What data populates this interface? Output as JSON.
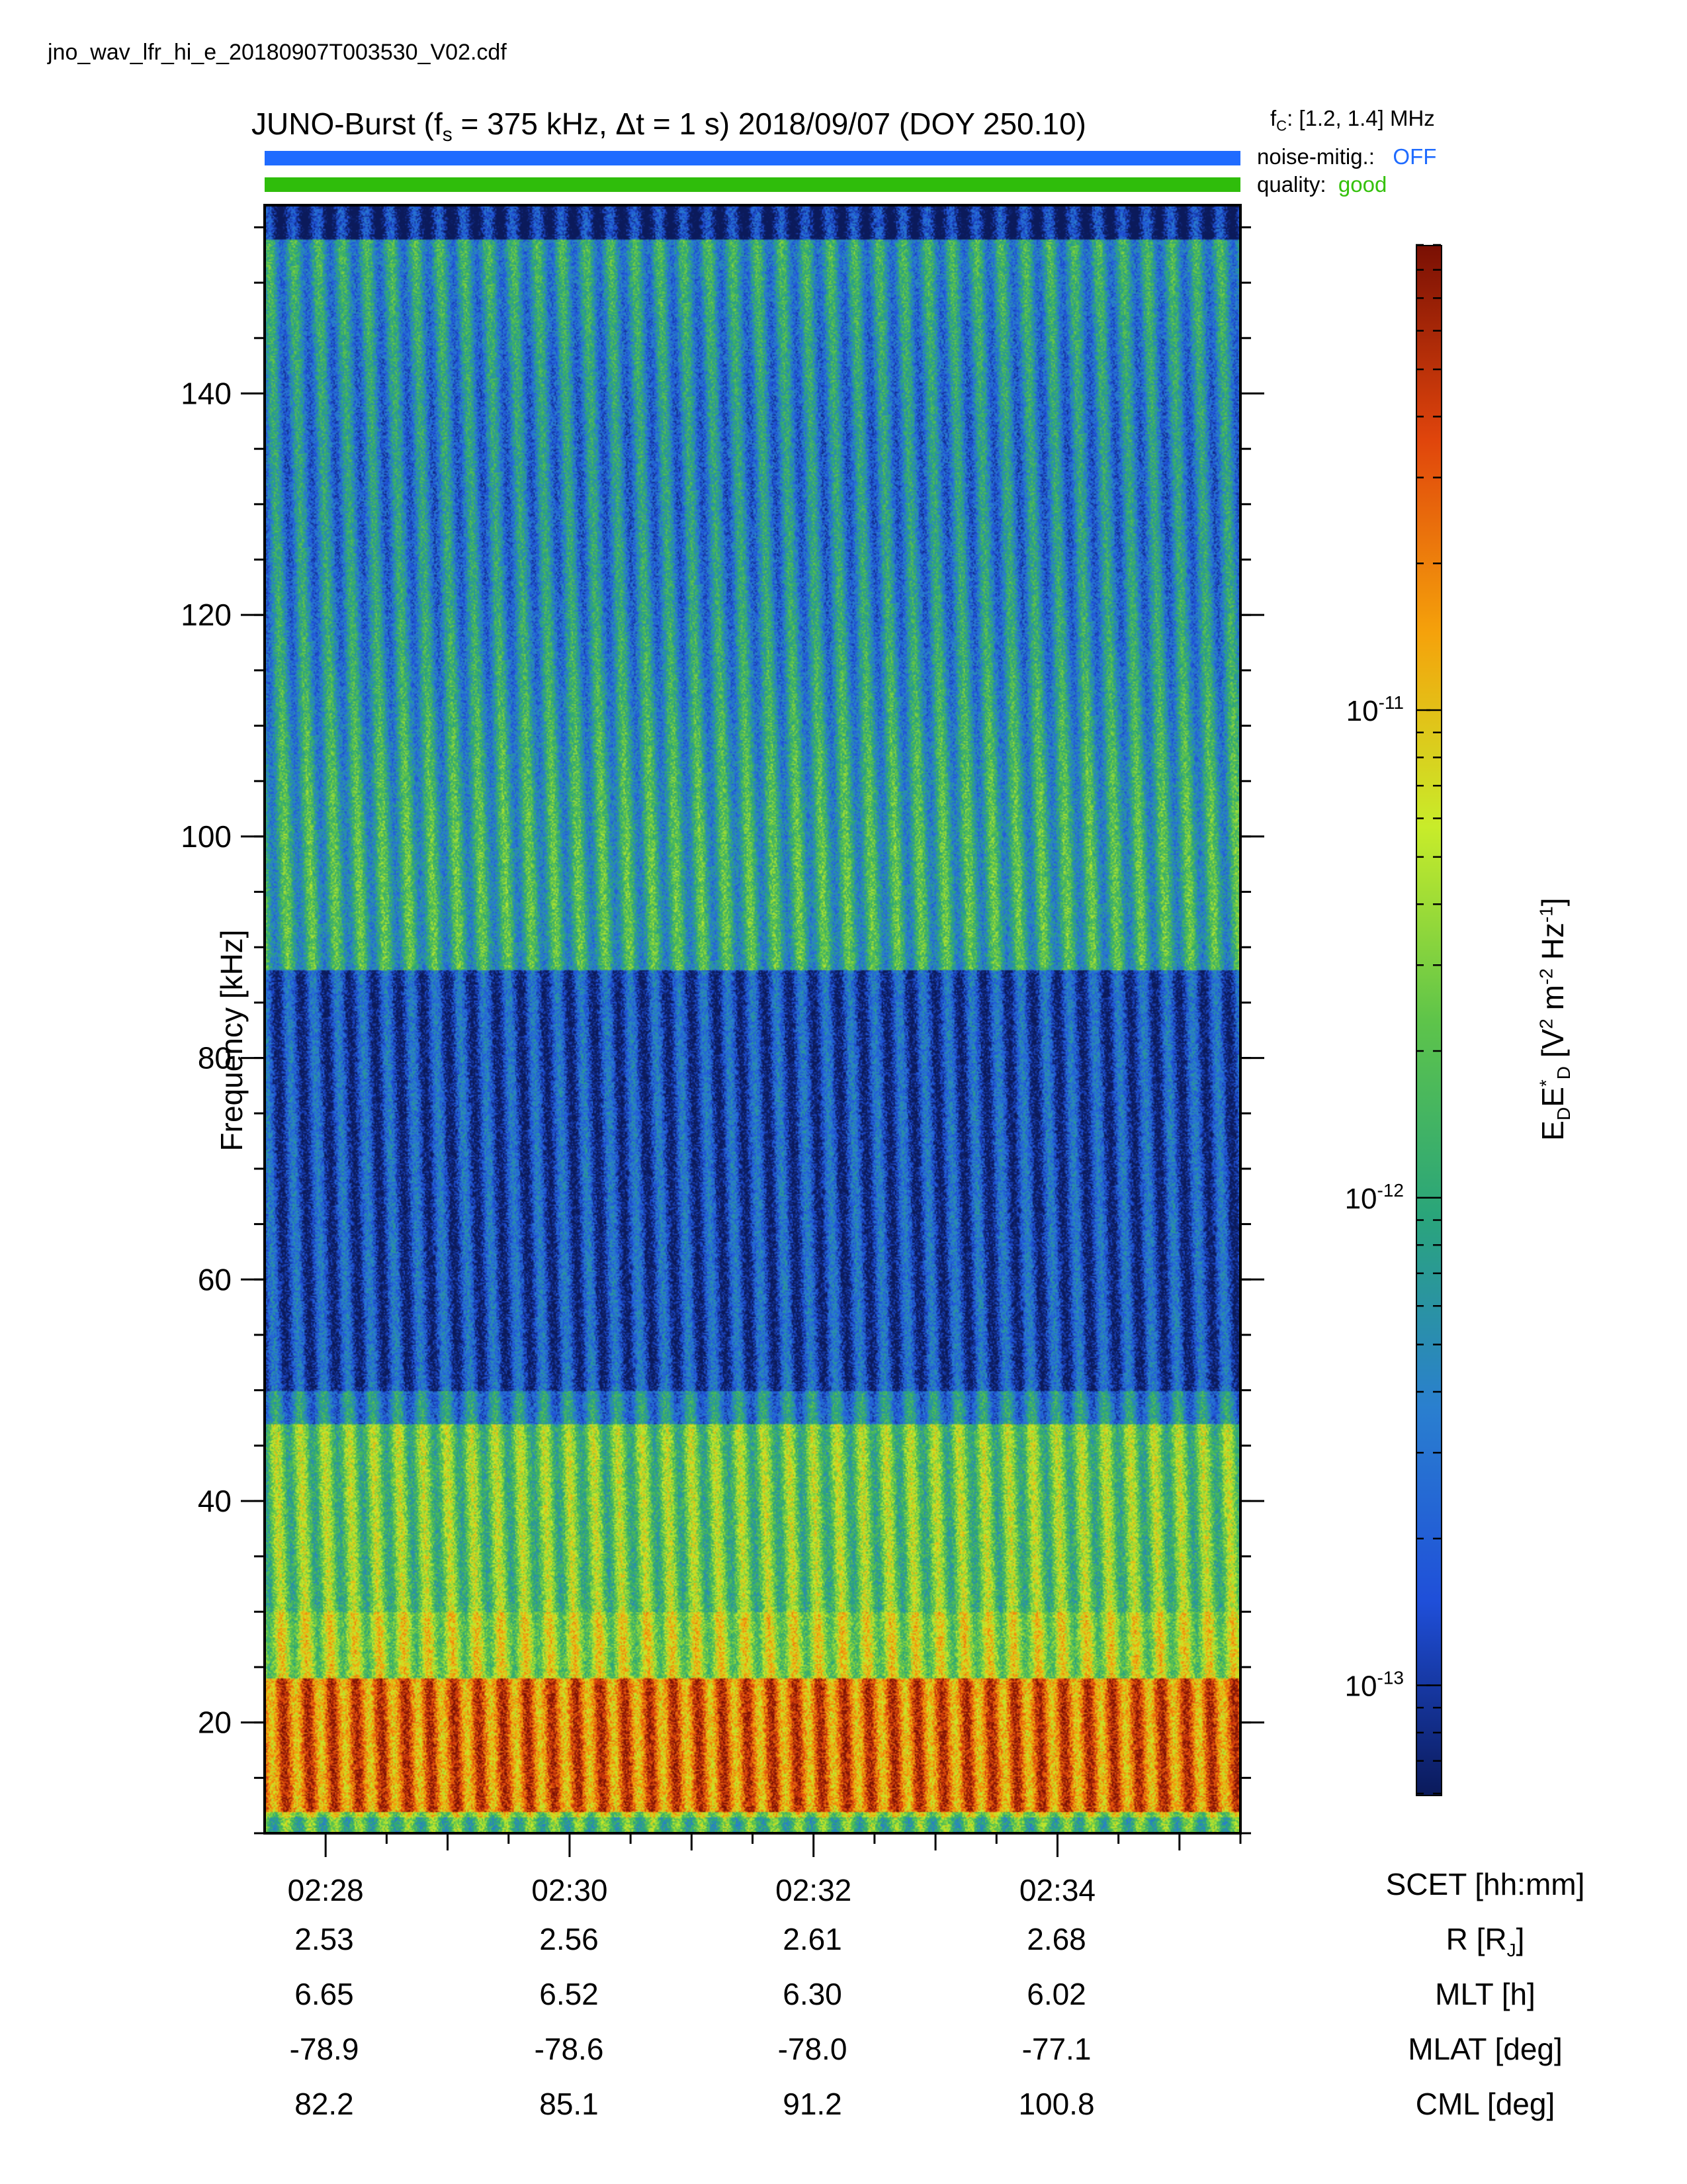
{
  "filename": "jno_wav_lfr_hi_e_20180907T003530_V02.cdf",
  "title": {
    "prefix": "JUNO-Burst (f",
    "sub": "s",
    "rest": " = 375 kHz, Δt = 1 s)  2018/09/07 (DOY 250.10)"
  },
  "fc": {
    "label": "f",
    "sub": "C",
    "value": ": [1.2, 1.4] MHz"
  },
  "noise": {
    "label": "noise-mitig.:",
    "value": "OFF",
    "color": "#1f6bff"
  },
  "quality": {
    "label": "quality:",
    "value": "good",
    "color": "#35c10c"
  },
  "colors": {
    "noise_bar": "#1f6bff",
    "quality_bar": "#2fbd0b"
  },
  "chart_data": {
    "type": "heatmap",
    "ylabel": "Frequency [kHz]",
    "ylim": [
      10,
      157
    ],
    "yticks": [
      20,
      40,
      60,
      80,
      100,
      120,
      140
    ],
    "xticks": [
      "02:28",
      "02:30",
      "02:32",
      "02:34"
    ],
    "xlim_minutes": [
      27.5,
      35.5
    ],
    "colorbar": {
      "label_main": "E",
      "label_text": "E_D E*_D [V² m⁻² Hz⁻¹]",
      "scale": "log",
      "range": [
        6e-14,
        9e-11
      ],
      "ticks": [
        "10",
        "10",
        "10"
      ],
      "tick_exponents": [
        "-11",
        "-12",
        "-13"
      ],
      "tick_values": [
        1e-11,
        1e-12,
        1e-13
      ],
      "colormap": [
        "#0b1a5b",
        "#1f4fd9",
        "#2a7fcf",
        "#2aa57a",
        "#5ec44a",
        "#c8ec2a",
        "#f5a20b",
        "#e0450c",
        "#7a1004"
      ]
    },
    "pattern": {
      "stripe_count": 40,
      "strong_band_khz": [
        12,
        24
      ],
      "dark_band_khz": [
        50,
        88
      ],
      "description": "periodic vertical emission stripes"
    },
    "ephemeris": {
      "labels": [
        "SCET [hh:mm]",
        "R [R",
        "MLT [h]",
        "MLAT [deg]",
        "CML [deg]"
      ],
      "R_sub": "J",
      "R_close": "]",
      "R": [
        "2.53",
        "2.56",
        "2.61",
        "2.68"
      ],
      "MLT": [
        "6.65",
        "6.52",
        "6.30",
        "6.02"
      ],
      "MLAT": [
        "-78.9",
        "-78.6",
        "-78.0",
        "-77.1"
      ],
      "CML": [
        "82.2",
        "85.1",
        "91.2",
        "100.8"
      ]
    }
  }
}
